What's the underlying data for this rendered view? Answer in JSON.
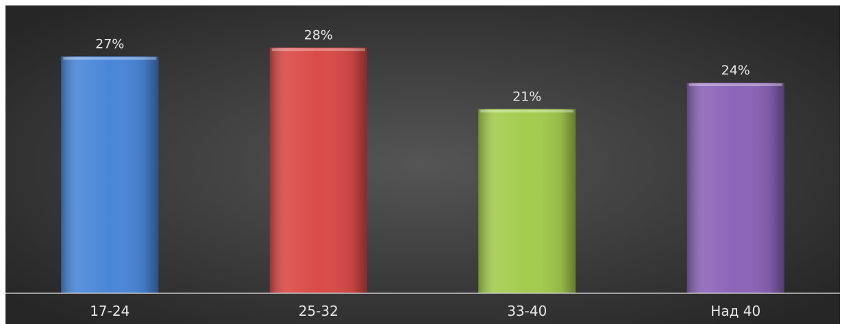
{
  "chart_data": {
    "type": "bar",
    "categories": [
      "17-24",
      "25-32",
      "33-40",
      "Над 40"
    ],
    "values": [
      27,
      28,
      21,
      24
    ],
    "value_labels": [
      "27%",
      "28%",
      "21%",
      "24%"
    ],
    "unit": "%",
    "ylim": [
      0,
      30
    ],
    "grid": false,
    "legend": "none",
    "colors": [
      "#4a86d8",
      "#d94a47",
      "#a4cc4e",
      "#8c64b8"
    ],
    "background": "#3a3a3a",
    "title": "",
    "xlabel": "",
    "ylabel": ""
  }
}
